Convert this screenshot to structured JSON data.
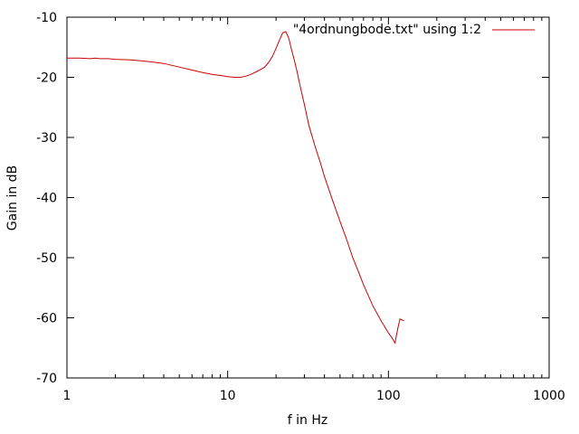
{
  "chart_data": {
    "type": "line",
    "title": "",
    "xlabel": "f in Hz",
    "ylabel": "Gain in dB",
    "x_scale": "log",
    "xlim": [
      1,
      1000
    ],
    "ylim": [
      -70,
      -10
    ],
    "x_ticks": [
      1,
      10,
      100,
      1000
    ],
    "x_tick_labels": [
      "1",
      "10",
      "100",
      "1000"
    ],
    "y_ticks": [
      -70,
      -60,
      -50,
      -40,
      -30,
      -20,
      -10
    ],
    "y_tick_labels": [
      "-70",
      "-60",
      "-50",
      "-40",
      "-30",
      "-20",
      "-10"
    ],
    "grid": false,
    "legend_position": "top-right",
    "series": [
      {
        "name": "\"4ordnungbode.txt\" using 1:2",
        "color": "#cc0000",
        "x": [
          1,
          1.2,
          1.4,
          1.5,
          1.6,
          1.8,
          2,
          2.5,
          3,
          3.5,
          4,
          5,
          6,
          7,
          8,
          9,
          10,
          11,
          12,
          13,
          14,
          15,
          16,
          17,
          18,
          19,
          20,
          21,
          22,
          23,
          24,
          25,
          26,
          27,
          28,
          30,
          32,
          35,
          38,
          40,
          45,
          50,
          55,
          60,
          65,
          70,
          80,
          90,
          100,
          105,
          110,
          112,
          115,
          118,
          120,
          125
        ],
        "y": [
          -16.8,
          -16.8,
          -16.9,
          -16.8,
          -16.9,
          -16.9,
          -17.0,
          -17.1,
          -17.3,
          -17.5,
          -17.7,
          -18.3,
          -18.8,
          -19.2,
          -19.5,
          -19.7,
          -19.9,
          -20.0,
          -20.0,
          -19.8,
          -19.5,
          -19.1,
          -18.7,
          -18.3,
          -17.5,
          -16.5,
          -15.2,
          -13.8,
          -12.6,
          -12.4,
          -13.5,
          -15.5,
          -17.2,
          -19.0,
          -21.0,
          -24.5,
          -28.0,
          -31.5,
          -34.5,
          -36.5,
          -40.5,
          -44.0,
          -47.0,
          -50.0,
          -52.3,
          -54.5,
          -58.0,
          -60.5,
          -62.5,
          -63.3,
          -64.2,
          -63.0,
          -61.5,
          -60.2,
          -60.3,
          -60.5
        ]
      }
    ]
  }
}
